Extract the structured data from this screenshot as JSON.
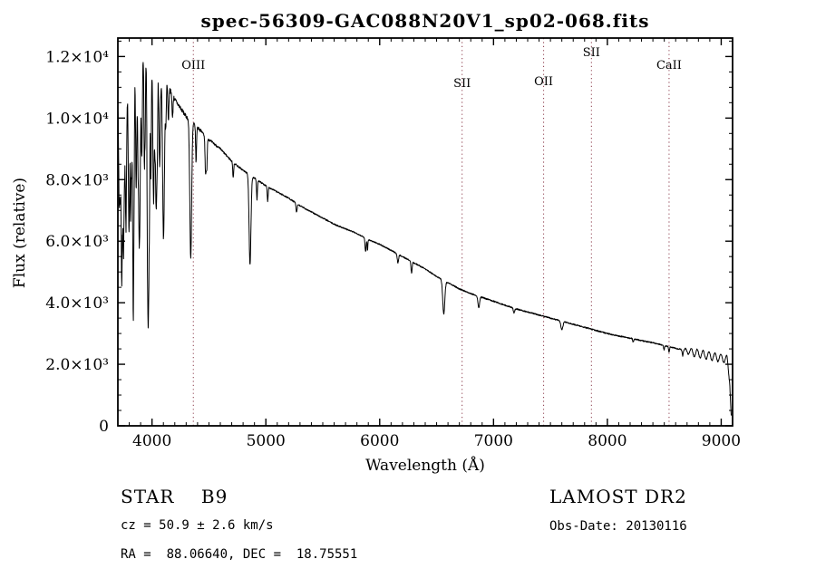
{
  "chart_data": {
    "type": "line",
    "title": "spec-56309-GAC088N20V1_sp02-068.fits",
    "xlabel": "Wavelength (Å)",
    "ylabel": "Flux (relative)",
    "xlim": [
      3700,
      9100
    ],
    "ylim": [
      0,
      12600
    ],
    "grid": false,
    "x_ticks": [
      {
        "value": 4000,
        "label": "4000"
      },
      {
        "value": 5000,
        "label": "5000"
      },
      {
        "value": 6000,
        "label": "6000"
      },
      {
        "value": 7000,
        "label": "7000"
      },
      {
        "value": 8000,
        "label": "8000"
      },
      {
        "value": 9000,
        "label": "9000"
      }
    ],
    "y_ticks": [
      {
        "value": 0,
        "label": "0"
      },
      {
        "value": 2000,
        "label": "2.0×10³"
      },
      {
        "value": 4000,
        "label": "4.0×10³"
      },
      {
        "value": 6000,
        "label": "6.0×10³"
      },
      {
        "value": 8000,
        "label": "8.0×10³"
      },
      {
        "value": 10000,
        "label": "1.0×10⁴"
      },
      {
        "value": 12000,
        "label": "1.2×10⁴"
      }
    ],
    "x_minor_step": 100,
    "y_minor_step": 500,
    "line_color": "#000000",
    "marker_color": "#8b3a4a",
    "line_markers": [
      {
        "label": "OIII",
        "wavelength": 4363,
        "label_y": 76
      },
      {
        "label": "SII",
        "wavelength": 6724,
        "label_y": 96
      },
      {
        "label": "OII",
        "wavelength": 7440,
        "label_y": 94
      },
      {
        "label": "SII",
        "wavelength": 7860,
        "label_y": 62
      },
      {
        "label": "CaII",
        "wavelength": 8542,
        "label_y": 76
      }
    ],
    "continuum": [
      [
        3700,
        11200
      ],
      [
        3800,
        11900
      ],
      [
        3900,
        12150
      ],
      [
        4000,
        11850
      ],
      [
        4100,
        11300
      ],
      [
        4200,
        10600
      ],
      [
        4300,
        10050
      ],
      [
        4400,
        9700
      ],
      [
        4500,
        9300
      ],
      [
        4600,
        9000
      ],
      [
        4700,
        8600
      ],
      [
        4800,
        8300
      ],
      [
        4900,
        8050
      ],
      [
        5000,
        7800
      ],
      [
        5100,
        7600
      ],
      [
        5200,
        7400
      ],
      [
        5300,
        7150
      ],
      [
        5400,
        6950
      ],
      [
        5500,
        6750
      ],
      [
        5600,
        6550
      ],
      [
        5700,
        6400
      ],
      [
        5800,
        6250
      ],
      [
        5900,
        6050
      ],
      [
        6000,
        5900
      ],
      [
        6100,
        5700
      ],
      [
        6200,
        5500
      ],
      [
        6300,
        5300
      ],
      [
        6400,
        5100
      ],
      [
        6500,
        4850
      ],
      [
        6600,
        4650
      ],
      [
        6700,
        4450
      ],
      [
        6800,
        4300
      ],
      [
        6900,
        4170
      ],
      [
        7000,
        4050
      ],
      [
        7100,
        3920
      ],
      [
        7200,
        3800
      ],
      [
        7300,
        3700
      ],
      [
        7400,
        3600
      ],
      [
        7500,
        3500
      ],
      [
        7600,
        3400
      ],
      [
        7700,
        3300
      ],
      [
        7800,
        3200
      ],
      [
        7900,
        3100
      ],
      [
        8000,
        3000
      ],
      [
        8100,
        2920
      ],
      [
        8200,
        2850
      ],
      [
        8300,
        2770
      ],
      [
        8400,
        2700
      ],
      [
        8500,
        2610
      ],
      [
        8600,
        2520
      ],
      [
        8700,
        2430
      ],
      [
        8800,
        2350
      ],
      [
        8900,
        2270
      ],
      [
        9000,
        2200
      ],
      [
        9050,
        2170
      ],
      [
        9075,
        1500
      ],
      [
        9090,
        150
      ]
    ],
    "absorption_lines": [
      [
        3712,
        0.3,
        5
      ],
      [
        3722,
        0.34,
        5
      ],
      [
        3734,
        0.4,
        5
      ],
      [
        3750,
        0.42,
        6
      ],
      [
        3771,
        0.45,
        6
      ],
      [
        3798,
        0.48,
        7
      ],
      [
        3820,
        0.25,
        4
      ],
      [
        3835,
        0.52,
        7
      ],
      [
        3860,
        0.2,
        4
      ],
      [
        3889,
        0.52,
        8
      ],
      [
        3933,
        0.3,
        4
      ],
      [
        3970,
        0.52,
        8
      ],
      [
        4009,
        0.12,
        4
      ],
      [
        4026,
        0.22,
        4
      ],
      [
        4101,
        0.46,
        8
      ],
      [
        4121,
        0.12,
        4
      ],
      [
        4144,
        0.1,
        4
      ],
      [
        4180,
        0.07,
        4
      ],
      [
        4340,
        0.45,
        8
      ],
      [
        4387,
        0.12,
        4
      ],
      [
        4471,
        0.13,
        5
      ],
      [
        4481,
        0.1,
        4
      ],
      [
        4713,
        0.06,
        4
      ],
      [
        4861,
        0.36,
        8
      ],
      [
        4922,
        0.08,
        4
      ],
      [
        5016,
        0.06,
        4
      ],
      [
        5270,
        0.04,
        5
      ],
      [
        5876,
        0.07,
        5
      ],
      [
        5893,
        0.06,
        3
      ],
      [
        6160,
        0.05,
        6
      ],
      [
        6280,
        0.07,
        5
      ],
      [
        6563,
        0.23,
        9
      ],
      [
        6870,
        0.09,
        7
      ],
      [
        7180,
        0.04,
        6
      ],
      [
        7600,
        0.08,
        9
      ],
      [
        8227,
        0.04,
        4
      ],
      [
        8498,
        0.05,
        4
      ],
      [
        8542,
        0.07,
        4
      ],
      [
        8662,
        0.06,
        4
      ]
    ],
    "noise": {
      "base": 20,
      "blue_amp": 340,
      "blue_scale": 280,
      "seed": 7,
      "blue_forest_lines": 24
    },
    "fringe": {
      "start": 8620,
      "period": 52,
      "amplitude": 130
    }
  },
  "annotations": {
    "star_class": "STAR    B9",
    "survey": "LAMOST DR2",
    "cz": "cz = 50.9 ± 2.6 km/s",
    "obsdate": "Obs-Date: 20130116",
    "radec": "RA =  88.06640, DEC =  18.75551"
  }
}
